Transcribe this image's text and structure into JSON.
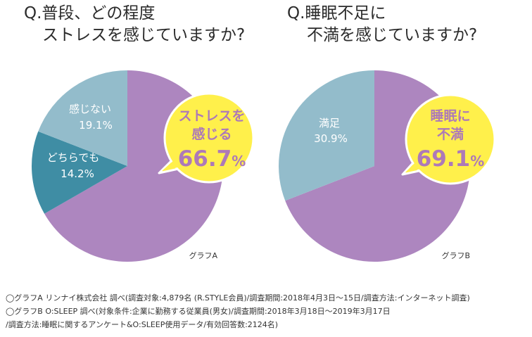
{
  "colors": {
    "purple": "#ad86bf",
    "blue_light": "#93bccb",
    "blue_dark": "#3f8da4",
    "bubble": "#fff04b",
    "bubble_text": "#ad79b8"
  },
  "chart_data": [
    {
      "type": "pie",
      "title_line1": "Q.普段、どの程度",
      "title_line2": "ストレスを感じていますか?",
      "caption": "グラフA",
      "slices": [
        {
          "label": "ストレスを感じる",
          "label_line1": "ストレスを",
          "label_line2": "感じる",
          "value": 66.7,
          "value_text": "66.7",
          "unit": "%",
          "color": "#ad86bf"
        },
        {
          "label": "どちらでも",
          "value": 14.2,
          "value_text": "14.2%",
          "color": "#3f8da4"
        },
        {
          "label": "感じない",
          "value": 19.1,
          "value_text": "19.1%",
          "color": "#93bccb"
        }
      ]
    },
    {
      "type": "pie",
      "title_line1": "Q.睡眠不足に",
      "title_line2": "不満を感じていますか?",
      "caption": "グラフB",
      "slices": [
        {
          "label": "睡眠に不満",
          "label_line1": "睡眠に",
          "label_line2": "不満",
          "value": 69.1,
          "value_text": "69.1",
          "unit": "%",
          "color": "#ad86bf"
        },
        {
          "label": "満足",
          "value": 30.9,
          "value_text": "30.9%",
          "color": "#93bccb"
        }
      ]
    }
  ],
  "notes": [
    "◯グラフA リンナイ株式会社 調べ(調査対象:4,879名 (R.STYLE会員)/調査期間:2018年4月3日〜15日/調査方法:インターネット調査)",
    "◯グラフB O:SLEEP 調べ(対象条件:企業に勤務する従業員(男女)/調査期間:2018年3月18日〜2019年3月17日",
    "/調査方法:睡眠に関するアンケート&O:SLEEP使用データ/有効回答数:2124名)"
  ]
}
